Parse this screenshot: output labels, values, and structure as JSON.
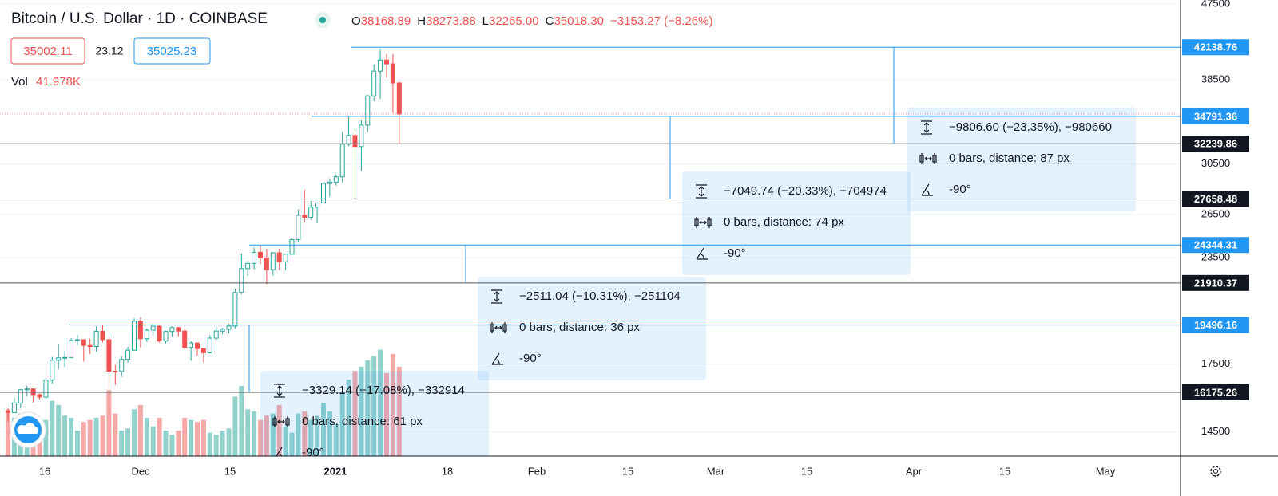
{
  "header": {
    "title": "Bitcoin / U.S. Dollar · 1D · COINBASE",
    "ohlc": [
      {
        "key": "O",
        "value": "38168.89"
      },
      {
        "key": "H",
        "value": "38273.88"
      },
      {
        "key": "L",
        "value": "32265.00"
      },
      {
        "key": "C",
        "value": "35018.30"
      }
    ],
    "change": "−3153.27 (−8.26%)",
    "bid": "35002.11",
    "spread": "23.12",
    "ask": "35025.23",
    "volume_key": "Vol",
    "volume_value": "41.978K"
  },
  "chart_data": {
    "type": "candlestick",
    "log_scale": true,
    "up_color": "#26a69a",
    "down_color": "#ef5350",
    "ylim": [
      13551,
      48044
    ],
    "yticks": [
      47500,
      38500,
      30500,
      26500,
      23500,
      17500,
      14500
    ],
    "x_labels": [
      "16",
      "Dec",
      "15",
      "2021",
      "18",
      "Feb",
      "15",
      "Mar",
      "15",
      "Apr",
      "15",
      "May"
    ],
    "candles": [
      [
        15340,
        15460,
        14900,
        15290
      ],
      [
        15290,
        15940,
        15270,
        15700
      ],
      [
        15700,
        16330,
        15460,
        16290
      ],
      [
        16290,
        16480,
        15990,
        16330
      ],
      [
        16330,
        16340,
        15720,
        16070
      ],
      [
        16070,
        16130,
        15860,
        15960
      ],
      [
        15960,
        16880,
        15890,
        16730
      ],
      [
        16730,
        17850,
        16560,
        17680
      ],
      [
        17680,
        18480,
        17260,
        17800
      ],
      [
        17800,
        18140,
        17350,
        17820
      ],
      [
        17820,
        18790,
        17780,
        18680
      ],
      [
        18680,
        18960,
        18420,
        18720
      ],
      [
        18720,
        18750,
        17620,
        18420
      ],
      [
        18420,
        18770,
        18000,
        18370
      ],
      [
        18370,
        19420,
        18100,
        19160
      ],
      [
        19160,
        19490,
        18580,
        18720
      ],
      [
        18720,
        18920,
        16330,
        17150
      ],
      [
        17150,
        17460,
        16510,
        17140
      ],
      [
        17140,
        17880,
        16880,
        17720
      ],
      [
        17720,
        18350,
        17560,
        18180
      ],
      [
        18180,
        19860,
        18180,
        19700
      ],
      [
        19700,
        19920,
        18320,
        18770
      ],
      [
        18770,
        19310,
        18600,
        19220
      ],
      [
        19220,
        19570,
        18930,
        19430
      ],
      [
        19430,
        19520,
        18570,
        18650
      ],
      [
        18650,
        19190,
        18520,
        19150
      ],
      [
        19150,
        19420,
        18890,
        19360
      ],
      [
        19360,
        19400,
        18900,
        19170
      ],
      [
        19170,
        19290,
        18210,
        18320
      ],
      [
        18320,
        18640,
        17650,
        18550
      ],
      [
        18550,
        18570,
        17910,
        18260
      ],
      [
        18260,
        18290,
        17570,
        18050
      ],
      [
        18050,
        18950,
        18020,
        18800
      ],
      [
        18800,
        19410,
        18700,
        19170
      ],
      [
        19170,
        19350,
        19000,
        19270
      ],
      [
        19270,
        19570,
        19060,
        19440
      ],
      [
        19440,
        21560,
        19290,
        21340
      ],
      [
        21340,
        23770,
        21230,
        22800
      ],
      [
        22800,
        23290,
        22350,
        23130
      ],
      [
        23130,
        24170,
        22750,
        23860
      ],
      [
        23860,
        24300,
        23080,
        23480
      ],
      [
        23480,
        24100,
        21830,
        22740
      ],
      [
        22740,
        23840,
        22360,
        23820
      ],
      [
        23820,
        24090,
        22700,
        23240
      ],
      [
        23240,
        23780,
        22720,
        23730
      ],
      [
        23730,
        24790,
        23450,
        24710
      ],
      [
        24710,
        26870,
        24510,
        26440
      ],
      [
        26440,
        28380,
        25920,
        26280
      ],
      [
        26280,
        27500,
        26100,
        27040
      ],
      [
        27040,
        27370,
        25860,
        27360
      ],
      [
        27360,
        28990,
        27330,
        28880
      ],
      [
        28880,
        29300,
        27850,
        28990
      ],
      [
        28990,
        29600,
        28700,
        29410
      ],
      [
        29410,
        33300,
        28950,
        32200
      ],
      [
        32200,
        34780,
        32030,
        33000
      ],
      [
        33000,
        33600,
        27660,
        31990
      ],
      [
        31990,
        34440,
        29900,
        33950
      ],
      [
        33950,
        36940,
        33290,
        36820
      ],
      [
        36820,
        40180,
        36290,
        39440
      ],
      [
        39440,
        41950,
        36500,
        40670
      ],
      [
        40670,
        41380,
        38720,
        40240
      ],
      [
        40240,
        41350,
        35110,
        38170
      ],
      [
        38168.89,
        38273.88,
        32265.0,
        35018.3
      ]
    ],
    "volume": [
      22,
      18,
      20,
      15,
      12,
      11,
      17,
      26,
      24,
      19,
      18,
      12,
      16,
      17,
      18,
      19,
      31,
      20,
      12,
      13,
      22,
      24,
      18,
      14,
      18,
      12,
      10,
      12,
      18,
      17,
      16,
      17,
      11,
      10,
      12,
      13,
      28,
      33,
      22,
      21,
      17,
      19,
      20,
      24,
      14,
      11,
      20,
      21,
      17,
      19,
      25,
      21,
      15,
      30,
      36,
      40,
      42,
      45,
      47,
      50,
      39,
      48,
      41.978
    ],
    "measures": [
      {
        "from": 42138.76,
        "to": 32239.86,
        "price": "−9806.60 (−23.35%), −980660",
        "bars": "0 bars, distance: 87 px",
        "angle": "-90°"
      },
      {
        "from": 34791.36,
        "to": 27658.48,
        "price": "−7049.74 (−20.33%), −704974",
        "bars": "0 bars, distance: 74 px",
        "angle": "-90°"
      },
      {
        "from": 24344.31,
        "to": 21910.37,
        "price": "−2511.04 (−10.31%), −251104",
        "bars": "0 bars, distance: 36 px",
        "angle": "-90°"
      },
      {
        "from": 19496.16,
        "to": 16175.26,
        "price": "−3329.14 (−17.08%), −332914",
        "bars": "0 bars, distance: 61 px",
        "angle": "-90°"
      }
    ]
  }
}
